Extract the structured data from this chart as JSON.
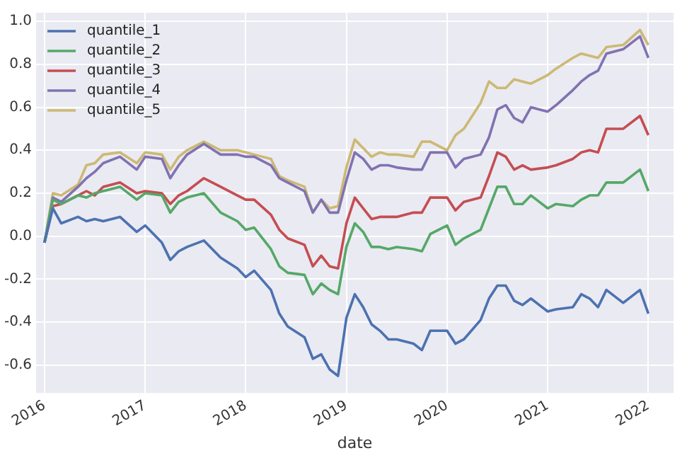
{
  "chart_data": {
    "type": "line",
    "xlabel": "date",
    "x": [
      "2016-01",
      "2016-02",
      "2016-03",
      "2016-05",
      "2016-06",
      "2016-07",
      "2016-08",
      "2016-10",
      "2016-12",
      "2017-01",
      "2017-03",
      "2017-04",
      "2017-05",
      "2017-06",
      "2017-08",
      "2017-10",
      "2017-12",
      "2018-01",
      "2018-02",
      "2018-04",
      "2018-05",
      "2018-06",
      "2018-08",
      "2018-09",
      "2018-10",
      "2018-11",
      "2018-12",
      "2019-01",
      "2019-02",
      "2019-03",
      "2019-04",
      "2019-05",
      "2019-06",
      "2019-07",
      "2019-09",
      "2019-10",
      "2019-11",
      "2020-01",
      "2020-02",
      "2020-03",
      "2020-05",
      "2020-06",
      "2020-07",
      "2020-08",
      "2020-09",
      "2020-10",
      "2020-11",
      "2021-01",
      "2021-02",
      "2021-04",
      "2021-05",
      "2021-06",
      "2021-07",
      "2021-08",
      "2021-10",
      "2021-12",
      "2022-01"
    ],
    "series": [
      {
        "name": "quantile_1",
        "color": "#4c72b0",
        "values": [
          -0.03,
          0.13,
          0.06,
          0.09,
          0.07,
          0.08,
          0.07,
          0.09,
          0.02,
          0.05,
          -0.03,
          -0.11,
          -0.07,
          -0.05,
          -0.02,
          -0.1,
          -0.15,
          -0.19,
          -0.16,
          -0.25,
          -0.36,
          -0.42,
          -0.47,
          -0.57,
          -0.55,
          -0.62,
          -0.65,
          -0.38,
          -0.27,
          -0.33,
          -0.41,
          -0.44,
          -0.48,
          -0.48,
          -0.5,
          -0.53,
          -0.44,
          -0.44,
          -0.5,
          -0.48,
          -0.39,
          -0.29,
          -0.23,
          -0.23,
          -0.3,
          -0.32,
          -0.29,
          -0.35,
          -0.34,
          -0.33,
          -0.27,
          -0.29,
          -0.33,
          -0.25,
          -0.31,
          -0.25,
          -0.36
        ]
      },
      {
        "name": "quantile_2",
        "color": "#55a868",
        "values": [
          -0.03,
          0.17,
          0.15,
          0.19,
          0.18,
          0.2,
          0.21,
          0.23,
          0.17,
          0.2,
          0.19,
          0.11,
          0.16,
          0.18,
          0.2,
          0.11,
          0.07,
          0.03,
          0.04,
          -0.06,
          -0.14,
          -0.17,
          -0.18,
          -0.27,
          -0.22,
          -0.25,
          -0.27,
          -0.05,
          0.06,
          0.02,
          -0.05,
          -0.05,
          -0.06,
          -0.05,
          -0.06,
          -0.07,
          0.01,
          0.05,
          -0.04,
          -0.01,
          0.03,
          0.13,
          0.23,
          0.23,
          0.15,
          0.15,
          0.19,
          0.13,
          0.15,
          0.14,
          0.17,
          0.19,
          0.19,
          0.25,
          0.25,
          0.31,
          0.21
        ]
      },
      {
        "name": "quantile_3",
        "color": "#c44e52",
        "values": [
          -0.03,
          0.14,
          0.15,
          0.19,
          0.21,
          0.19,
          0.23,
          0.25,
          0.2,
          0.21,
          0.2,
          0.15,
          0.19,
          0.21,
          0.27,
          0.23,
          0.19,
          0.17,
          0.17,
          0.1,
          0.03,
          -0.01,
          -0.04,
          -0.14,
          -0.09,
          -0.14,
          -0.15,
          0.06,
          0.18,
          0.13,
          0.08,
          0.09,
          0.09,
          0.09,
          0.11,
          0.11,
          0.18,
          0.18,
          0.12,
          0.16,
          0.18,
          0.28,
          0.39,
          0.37,
          0.31,
          0.33,
          0.31,
          0.32,
          0.33,
          0.36,
          0.39,
          0.4,
          0.39,
          0.5,
          0.5,
          0.56,
          0.47
        ]
      },
      {
        "name": "quantile_4",
        "color": "#8172b2",
        "values": [
          -0.03,
          0.18,
          0.16,
          0.23,
          0.27,
          0.3,
          0.34,
          0.37,
          0.31,
          0.37,
          0.36,
          0.27,
          0.33,
          0.38,
          0.43,
          0.38,
          0.38,
          0.37,
          0.37,
          0.33,
          0.27,
          0.25,
          0.21,
          0.11,
          0.17,
          0.11,
          0.11,
          0.26,
          0.39,
          0.36,
          0.31,
          0.33,
          0.33,
          0.32,
          0.31,
          0.31,
          0.39,
          0.39,
          0.32,
          0.36,
          0.38,
          0.46,
          0.59,
          0.61,
          0.55,
          0.53,
          0.6,
          0.58,
          0.61,
          0.68,
          0.72,
          0.75,
          0.77,
          0.85,
          0.87,
          0.93,
          0.83
        ]
      },
      {
        "name": "quantile_5",
        "color": "#ccb974",
        "values": [
          -0.03,
          0.2,
          0.19,
          0.24,
          0.33,
          0.34,
          0.38,
          0.39,
          0.34,
          0.39,
          0.38,
          0.31,
          0.37,
          0.4,
          0.44,
          0.4,
          0.4,
          0.39,
          0.38,
          0.36,
          0.28,
          0.26,
          0.23,
          0.11,
          0.17,
          0.13,
          0.14,
          0.32,
          0.45,
          0.41,
          0.37,
          0.39,
          0.38,
          0.38,
          0.37,
          0.44,
          0.44,
          0.4,
          0.47,
          0.5,
          0.62,
          0.72,
          0.69,
          0.69,
          0.73,
          0.72,
          0.71,
          0.75,
          0.78,
          0.83,
          0.85,
          0.84,
          0.83,
          0.88,
          0.89,
          0.96,
          0.89
        ]
      }
    ],
    "xlim": [
      "2015-12",
      "2022-04"
    ],
    "xticks": [
      "2016",
      "2017",
      "2018",
      "2019",
      "2020",
      "2021",
      "2022"
    ],
    "ylim": [
      -0.73,
      1.04
    ],
    "yticks": [
      -0.6,
      -0.4,
      -0.2,
      {
        "value": 0,
        "label": "0.0"
      },
      0.2,
      0.4,
      0.6,
      0.8,
      {
        "value": 1,
        "label": "1.0"
      }
    ],
    "grid": true,
    "legend": "top left",
    "marker": "none",
    "line_style": "solid"
  }
}
